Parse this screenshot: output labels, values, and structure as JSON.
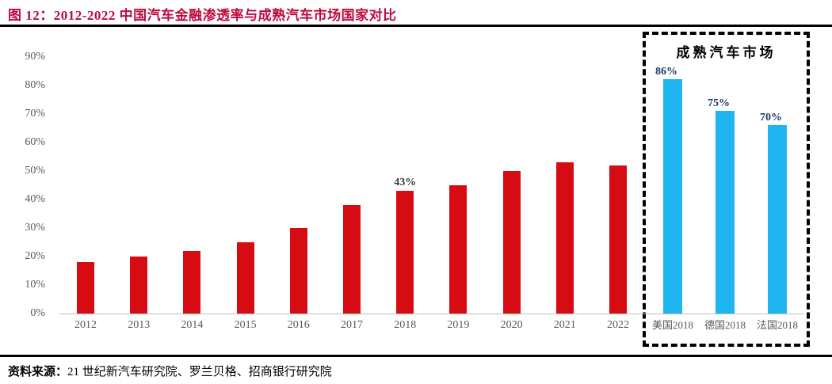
{
  "title": {
    "label": "图 12：2012-2022 中国汽车金融渗透率与成熟汽车市场国家对比"
  },
  "source": {
    "prefix": "资料来源：",
    "text": "21 世纪新汽车研究院、罗兰贝格、招商银行研究院"
  },
  "colors": {
    "title_red": "#BD0B3E",
    "bar_red": "#D70C13",
    "bar_blue": "#1FB5F0",
    "axis_gray": "#595959",
    "value_label_navy": "#1F3864",
    "value_label_dark": "#3A3A3A"
  },
  "chart_data": {
    "type": "bar",
    "title": "2012-2022 中国汽车金融渗透率与成熟汽车市场国家对比",
    "xlabel": "",
    "ylabel": "",
    "ylim": [
      0,
      90
    ],
    "ytick_labels": [
      "0%",
      "10%",
      "20%",
      "30%",
      "40%",
      "50%",
      "60%",
      "70%",
      "80%",
      "90%"
    ],
    "grid": false,
    "legend": "none",
    "series": [
      {
        "name": "中国汽车金融渗透率",
        "color": "#D70C13",
        "categories": [
          "2012",
          "2013",
          "2014",
          "2015",
          "2016",
          "2017",
          "2018",
          "2019",
          "2020",
          "2021",
          "2022"
        ],
        "values": [
          18,
          20,
          22,
          25,
          30,
          38,
          43,
          45,
          50,
          53,
          52
        ],
        "point_labels": [
          "",
          "",
          "",
          "",
          "",
          "",
          "43%",
          "",
          "",
          "",
          ""
        ]
      },
      {
        "name": "成熟汽车市场",
        "color": "#1FB5F0",
        "categories": [
          "美国2018",
          "德国2018",
          "法国2018"
        ],
        "values": [
          86,
          75,
          70
        ],
        "point_labels": [
          "86%",
          "75%",
          "70%"
        ],
        "group_box": "dashed"
      }
    ]
  }
}
